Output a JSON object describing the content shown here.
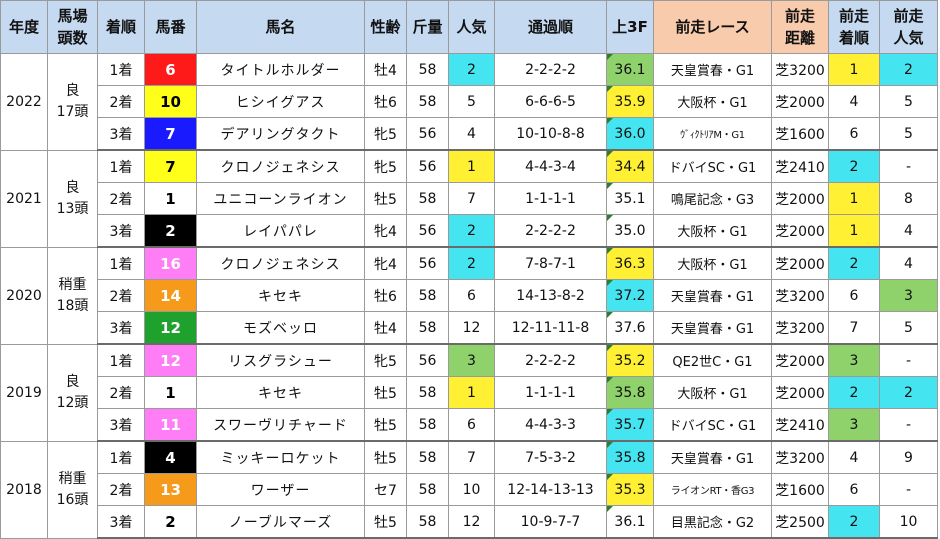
{
  "headers": {
    "year": "年度",
    "cond_line1": "馬場",
    "cond_line2": "頭数",
    "rank": "着順",
    "num": "馬番",
    "name": "馬名",
    "sexage": "性齢",
    "weight": "斤量",
    "pop": "人気",
    "pass": "通過順",
    "last3f": "上3F",
    "prevrace": "前走レース",
    "prevdist_line1": "前走",
    "prevdist_line2": "距離",
    "prevrank_line1": "前走",
    "prevrank_line2": "着順",
    "prevpop_line1": "前走",
    "prevpop_line2": "人気"
  },
  "colors": {
    "header_blue": "#c5d9f1",
    "header_salmon": "#f8cbad",
    "cyan": "#44e5f0",
    "yellow": "#fff033",
    "green": "#8fd16a",
    "frame_1": "#ffffff",
    "frame_2": "#000000",
    "frame_3": "#ff1a1a",
    "frame_4": "#1a1aff",
    "frame_5": "#ffff1a",
    "frame_6": "#1fa12e",
    "frame_7": "#f59a1a",
    "frame_8": "#ff7ef5"
  },
  "years": [
    {
      "year": "2022",
      "cond": "良",
      "heads": "17頭",
      "rows": [
        {
          "rank": "1着",
          "num": "6",
          "frame": "frame_3",
          "name": "タイトルホルダー",
          "sexage": "牡4",
          "weight": "58",
          "pop": "2",
          "pop_bg": "cyan",
          "pass": "2-2-2-2",
          "last3f": "36.1",
          "last3f_bg": "green",
          "prev": "天皇賞春・G1",
          "prev_small": false,
          "dist": "芝3200",
          "prank": "1",
          "prank_bg": "yellow",
          "ppop": "2",
          "ppop_bg": "cyan"
        },
        {
          "rank": "2着",
          "num": "10",
          "frame": "frame_5",
          "name": "ヒシイグアス",
          "sexage": "牡6",
          "weight": "58",
          "pop": "5",
          "pop_bg": "",
          "pass": "6-6-6-5",
          "last3f": "35.9",
          "last3f_bg": "yellow",
          "prev": "大阪杯・G1",
          "prev_small": false,
          "dist": "芝2000",
          "prank": "4",
          "prank_bg": "",
          "ppop": "5",
          "ppop_bg": ""
        },
        {
          "rank": "3着",
          "num": "7",
          "frame": "frame_4",
          "name": "デアリングタクト",
          "sexage": "牝5",
          "weight": "56",
          "pop": "4",
          "pop_bg": "",
          "pass": "10-10-8-8",
          "last3f": "36.0",
          "last3f_bg": "cyan",
          "prev": "ｳﾞｨｸﾄﾘｱM・G1",
          "prev_small": true,
          "dist": "芝1600",
          "prank": "6",
          "prank_bg": "",
          "ppop": "5",
          "ppop_bg": ""
        }
      ]
    },
    {
      "year": "2021",
      "cond": "良",
      "heads": "13頭",
      "rows": [
        {
          "rank": "1着",
          "num": "7",
          "frame": "frame_5",
          "name": "クロノジェネシス",
          "sexage": "牝5",
          "weight": "56",
          "pop": "1",
          "pop_bg": "yellow",
          "pass": "4-4-3-4",
          "last3f": "34.4",
          "last3f_bg": "yellow",
          "prev": "ドバイSC・G1",
          "prev_small": false,
          "dist": "芝2410",
          "prank": "2",
          "prank_bg": "cyan",
          "ppop": "-",
          "ppop_bg": ""
        },
        {
          "rank": "2着",
          "num": "1",
          "frame": "frame_1",
          "name": "ユニコーンライオン",
          "sexage": "牡5",
          "weight": "58",
          "pop": "7",
          "pop_bg": "",
          "pass": "1-1-1-1",
          "last3f": "35.1",
          "last3f_bg": "",
          "prev": "鳴尾記念・G3",
          "prev_small": false,
          "dist": "芝2000",
          "prank": "1",
          "prank_bg": "yellow",
          "ppop": "8",
          "ppop_bg": ""
        },
        {
          "rank": "3着",
          "num": "2",
          "frame": "frame_2",
          "name": "レイパパレ",
          "sexage": "牝4",
          "weight": "56",
          "pop": "2",
          "pop_bg": "cyan",
          "pass": "2-2-2-2",
          "last3f": "35.0",
          "last3f_bg": "",
          "prev": "大阪杯・G1",
          "prev_small": false,
          "dist": "芝2000",
          "prank": "1",
          "prank_bg": "yellow",
          "ppop": "4",
          "ppop_bg": ""
        }
      ]
    },
    {
      "year": "2020",
      "cond": "稍重",
      "heads": "18頭",
      "rows": [
        {
          "rank": "1着",
          "num": "16",
          "frame": "frame_8",
          "name": "クロノジェネシス",
          "sexage": "牝4",
          "weight": "56",
          "pop": "2",
          "pop_bg": "cyan",
          "pass": "7-8-7-1",
          "last3f": "36.3",
          "last3f_bg": "yellow",
          "prev": "大阪杯・G1",
          "prev_small": false,
          "dist": "芝2000",
          "prank": "2",
          "prank_bg": "cyan",
          "ppop": "4",
          "ppop_bg": ""
        },
        {
          "rank": "2着",
          "num": "14",
          "frame": "frame_7",
          "name": "キセキ",
          "sexage": "牡6",
          "weight": "58",
          "pop": "6",
          "pop_bg": "",
          "pass": "14-13-8-2",
          "last3f": "37.2",
          "last3f_bg": "cyan",
          "prev": "天皇賞春・G1",
          "prev_small": false,
          "dist": "芝3200",
          "prank": "6",
          "prank_bg": "",
          "ppop": "3",
          "ppop_bg": "green"
        },
        {
          "rank": "3着",
          "num": "12",
          "frame": "frame_6",
          "name": "モズベッロ",
          "sexage": "牡4",
          "weight": "58",
          "pop": "12",
          "pop_bg": "",
          "pass": "12-11-11-8",
          "last3f": "37.6",
          "last3f_bg": "",
          "prev": "天皇賞春・G1",
          "prev_small": false,
          "dist": "芝3200",
          "prank": "7",
          "prank_bg": "",
          "ppop": "5",
          "ppop_bg": ""
        }
      ]
    },
    {
      "year": "2019",
      "cond": "良",
      "heads": "12頭",
      "rows": [
        {
          "rank": "1着",
          "num": "12",
          "frame": "frame_8",
          "name": "リスグラシュー",
          "sexage": "牝5",
          "weight": "56",
          "pop": "3",
          "pop_bg": "green",
          "pass": "2-2-2-2",
          "last3f": "35.2",
          "last3f_bg": "yellow",
          "prev": "QE2世C・G1",
          "prev_small": false,
          "dist": "芝2000",
          "prank": "3",
          "prank_bg": "green",
          "ppop": "-",
          "ppop_bg": ""
        },
        {
          "rank": "2着",
          "num": "1",
          "frame": "frame_1",
          "name": "キセキ",
          "sexage": "牡5",
          "weight": "58",
          "pop": "1",
          "pop_bg": "yellow",
          "pass": "1-1-1-1",
          "last3f": "35.8",
          "last3f_bg": "green",
          "prev": "大阪杯・G1",
          "prev_small": false,
          "dist": "芝2000",
          "prank": "2",
          "prank_bg": "cyan",
          "ppop": "2",
          "ppop_bg": "cyan"
        },
        {
          "rank": "3着",
          "num": "11",
          "frame": "frame_8",
          "name": "スワーヴリチャード",
          "sexage": "牡5",
          "weight": "58",
          "pop": "6",
          "pop_bg": "",
          "pass": "4-4-3-3",
          "last3f": "35.7",
          "last3f_bg": "cyan",
          "prev": "ドバイSC・G1",
          "prev_small": false,
          "dist": "芝2410",
          "prank": "3",
          "prank_bg": "green",
          "ppop": "-",
          "ppop_bg": ""
        }
      ]
    },
    {
      "year": "2018",
      "cond": "稍重",
      "heads": "16頭",
      "rows": [
        {
          "rank": "1着",
          "num": "4",
          "frame": "frame_2",
          "name": "ミッキーロケット",
          "sexage": "牡5",
          "weight": "58",
          "pop": "7",
          "pop_bg": "",
          "pass": "7-5-3-2",
          "last3f": "35.8",
          "last3f_bg": "cyan",
          "prev": "天皇賞春・G1",
          "prev_small": false,
          "dist": "芝3200",
          "prank": "4",
          "prank_bg": "",
          "ppop": "9",
          "ppop_bg": ""
        },
        {
          "rank": "2着",
          "num": "13",
          "frame": "frame_7",
          "name": "ワーザー",
          "sexage": "セ7",
          "weight": "58",
          "pop": "10",
          "pop_bg": "",
          "pass": "12-14-13-13",
          "last3f": "35.3",
          "last3f_bg": "yellow",
          "prev": "ライオンRT・香G3",
          "prev_small": true,
          "dist": "芝1600",
          "prank": "6",
          "prank_bg": "",
          "ppop": "-",
          "ppop_bg": ""
        },
        {
          "rank": "3着",
          "num": "2",
          "frame": "frame_1",
          "name": "ノーブルマーズ",
          "sexage": "牡5",
          "weight": "58",
          "pop": "12",
          "pop_bg": "",
          "pass": "10-9-7-7",
          "last3f": "36.1",
          "last3f_bg": "",
          "prev": "目黒記念・G2",
          "prev_small": false,
          "dist": "芝2500",
          "prank": "2",
          "prank_bg": "cyan",
          "ppop": "10",
          "ppop_bg": ""
        }
      ]
    }
  ]
}
